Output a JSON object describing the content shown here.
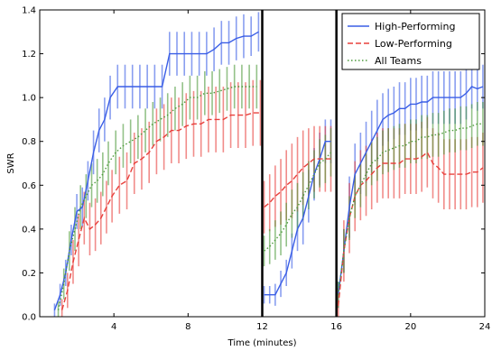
{
  "chart_data": {
    "type": "line",
    "xlabel": "Time (minutes)",
    "ylabel": "SWR",
    "xlim": [
      0,
      24
    ],
    "ylim": [
      0,
      1.4
    ],
    "x_ticks": [
      4,
      8,
      12,
      16,
      20,
      24
    ],
    "y_ticks": [
      0.0,
      0.2,
      0.4,
      0.6,
      0.8,
      1.0,
      1.2,
      1.4
    ],
    "y_tick_labels": [
      "0.0",
      "0.2",
      "0.4",
      "0.6",
      "0.8",
      "1.0",
      "1.2",
      "1.4"
    ],
    "grid": false,
    "legend_position": "top-right",
    "phase_boundaries": [
      12,
      16
    ],
    "series": [
      {
        "name": "High-Performing",
        "color": "#3a5ee6",
        "line_style": "solid",
        "segments": [
          {
            "x": [
              0.8,
              1.1,
              1.4,
              1.7,
              2.0,
              2.3,
              2.6,
              2.9,
              3.2,
              3.5,
              3.8,
              4.2,
              4.6,
              5.0,
              5.4,
              5.8,
              6.2,
              6.6,
              7.0,
              7.4,
              7.8,
              8.2,
              8.6,
              9.0,
              9.4,
              9.8,
              10.2,
              10.6,
              11.0,
              11.4,
              11.8
            ],
            "y": [
              0.03,
              0.1,
              0.2,
              0.35,
              0.48,
              0.5,
              0.62,
              0.75,
              0.85,
              0.9,
              1.0,
              1.05,
              1.05,
              1.05,
              1.05,
              1.05,
              1.05,
              1.05,
              1.2,
              1.2,
              1.2,
              1.2,
              1.2,
              1.2,
              1.22,
              1.25,
              1.25,
              1.27,
              1.28,
              1.28,
              1.3
            ],
            "err": [
              0.03,
              0.05,
              0.06,
              0.07,
              0.08,
              0.09,
              0.09,
              0.1,
              0.1,
              0.1,
              0.1,
              0.1,
              0.1,
              0.1,
              0.1,
              0.1,
              0.1,
              0.1,
              0.1,
              0.1,
              0.1,
              0.1,
              0.1,
              0.1,
              0.1,
              0.1,
              0.1,
              0.1,
              0.1,
              0.09,
              0.09
            ]
          },
          {
            "x": [
              12.1,
              12.4,
              12.7,
              13.0,
              13.3,
              13.6,
              13.9,
              14.2,
              14.5,
              14.8,
              15.1,
              15.4,
              15.7
            ],
            "y": [
              0.1,
              0.1,
              0.1,
              0.15,
              0.2,
              0.3,
              0.4,
              0.45,
              0.55,
              0.65,
              0.72,
              0.8,
              0.8
            ],
            "err": [
              0.04,
              0.04,
              0.05,
              0.06,
              0.06,
              0.08,
              0.1,
              0.12,
              0.12,
              0.12,
              0.12,
              0.1,
              0.1
            ]
          },
          {
            "x": [
              16.1,
              16.4,
              16.7,
              17.0,
              17.3,
              17.6,
              17.9,
              18.2,
              18.5,
              18.8,
              19.1,
              19.4,
              19.7,
              20.0,
              20.3,
              20.6,
              20.9,
              21.2,
              21.5,
              21.8,
              22.1,
              22.4,
              22.7,
              23.0,
              23.3,
              23.6,
              23.9
            ],
            "y": [
              0.1,
              0.3,
              0.5,
              0.65,
              0.7,
              0.75,
              0.8,
              0.85,
              0.9,
              0.92,
              0.93,
              0.95,
              0.95,
              0.97,
              0.97,
              0.98,
              0.98,
              1.0,
              1.0,
              1.0,
              1.0,
              1.0,
              1.0,
              1.02,
              1.05,
              1.04,
              1.05
            ],
            "err": [
              0.06,
              0.1,
              0.14,
              0.14,
              0.14,
              0.14,
              0.14,
              0.14,
              0.12,
              0.12,
              0.12,
              0.12,
              0.12,
              0.12,
              0.12,
              0.12,
              0.12,
              0.12,
              0.12,
              0.12,
              0.12,
              0.12,
              0.12,
              0.12,
              0.1,
              0.1,
              0.1
            ]
          }
        ]
      },
      {
        "name": "Low-Performing",
        "color": "#e8403c",
        "line_style": "dashed",
        "segments": [
          {
            "x": [
              1.2,
              1.5,
              1.8,
              2.1,
              2.4,
              2.7,
              3.0,
              3.3,
              3.6,
              3.9,
              4.3,
              4.7,
              5.1,
              5.5,
              5.9,
              6.3,
              6.7,
              7.1,
              7.5,
              7.9,
              8.3,
              8.7,
              9.1,
              9.5,
              9.9,
              10.3,
              10.7,
              11.1,
              11.5,
              11.9
            ],
            "y": [
              0.03,
              0.12,
              0.25,
              0.35,
              0.45,
              0.4,
              0.42,
              0.45,
              0.5,
              0.55,
              0.6,
              0.62,
              0.7,
              0.72,
              0.75,
              0.8,
              0.82,
              0.85,
              0.85,
              0.87,
              0.88,
              0.88,
              0.9,
              0.9,
              0.9,
              0.92,
              0.92,
              0.92,
              0.93,
              0.93
            ],
            "err": [
              0.05,
              0.08,
              0.1,
              0.12,
              0.12,
              0.12,
              0.12,
              0.12,
              0.12,
              0.12,
              0.13,
              0.13,
              0.14,
              0.14,
              0.14,
              0.15,
              0.15,
              0.15,
              0.15,
              0.15,
              0.15,
              0.15,
              0.15,
              0.15,
              0.15,
              0.15,
              0.15,
              0.15,
              0.15,
              0.15
            ]
          },
          {
            "x": [
              12.1,
              12.4,
              12.7,
              13.0,
              13.3,
              13.6,
              13.9,
              14.2,
              14.5,
              14.8,
              15.1,
              15.4,
              15.7
            ],
            "y": [
              0.5,
              0.52,
              0.55,
              0.57,
              0.6,
              0.62,
              0.65,
              0.68,
              0.7,
              0.72,
              0.72,
              0.72,
              0.72
            ],
            "err": [
              0.12,
              0.13,
              0.14,
              0.15,
              0.16,
              0.17,
              0.17,
              0.17,
              0.16,
              0.15,
              0.15,
              0.15,
              0.15
            ]
          },
          {
            "x": [
              16.1,
              16.4,
              16.7,
              17.0,
              17.3,
              17.6,
              17.9,
              18.2,
              18.5,
              18.8,
              19.1,
              19.4,
              19.7,
              20.0,
              20.3,
              20.6,
              20.9,
              21.2,
              21.5,
              21.8,
              22.1,
              22.4,
              22.7,
              23.0,
              23.3,
              23.6,
              23.9
            ],
            "y": [
              0.05,
              0.3,
              0.45,
              0.55,
              0.6,
              0.62,
              0.65,
              0.68,
              0.7,
              0.7,
              0.7,
              0.7,
              0.72,
              0.72,
              0.72,
              0.73,
              0.75,
              0.7,
              0.68,
              0.65,
              0.65,
              0.65,
              0.65,
              0.65,
              0.66,
              0.66,
              0.68
            ],
            "err": [
              0.08,
              0.14,
              0.16,
              0.16,
              0.16,
              0.16,
              0.16,
              0.16,
              0.16,
              0.16,
              0.16,
              0.16,
              0.16,
              0.16,
              0.16,
              0.16,
              0.16,
              0.16,
              0.16,
              0.16,
              0.16,
              0.16,
              0.16,
              0.16,
              0.16,
              0.16,
              0.16
            ]
          }
        ]
      },
      {
        "name": "All Teams",
        "color": "#4c9a3b",
        "line_style": "dotted",
        "segments": [
          {
            "x": [
              1.0,
              1.3,
              1.6,
              1.9,
              2.2,
              2.5,
              2.8,
              3.1,
              3.4,
              3.7,
              4.1,
              4.5,
              4.9,
              5.3,
              5.7,
              6.1,
              6.5,
              6.9,
              7.3,
              7.7,
              8.1,
              8.5,
              8.9,
              9.3,
              9.7,
              10.1,
              10.5,
              10.9,
              11.3,
              11.7
            ],
            "y": [
              0.03,
              0.15,
              0.3,
              0.4,
              0.5,
              0.55,
              0.6,
              0.62,
              0.65,
              0.7,
              0.75,
              0.78,
              0.8,
              0.82,
              0.85,
              0.88,
              0.9,
              0.92,
              0.95,
              0.97,
              1.0,
              1.0,
              1.02,
              1.02,
              1.03,
              1.04,
              1.05,
              1.05,
              1.05,
              1.05
            ],
            "err": [
              0.04,
              0.07,
              0.09,
              0.1,
              0.1,
              0.1,
              0.1,
              0.1,
              0.1,
              0.1,
              0.1,
              0.1,
              0.1,
              0.1,
              0.1,
              0.1,
              0.1,
              0.1,
              0.1,
              0.1,
              0.1,
              0.1,
              0.1,
              0.1,
              0.1,
              0.1,
              0.1,
              0.1,
              0.1,
              0.1
            ]
          },
          {
            "x": [
              12.1,
              12.4,
              12.7,
              13.0,
              13.3,
              13.6,
              13.9,
              14.2,
              14.5,
              14.8,
              15.1,
              15.4,
              15.7
            ],
            "y": [
              0.3,
              0.32,
              0.35,
              0.38,
              0.42,
              0.47,
              0.5,
              0.55,
              0.6,
              0.65,
              0.7,
              0.72,
              0.75
            ],
            "err": [
              0.07,
              0.08,
              0.09,
              0.1,
              0.1,
              0.11,
              0.11,
              0.11,
              0.11,
              0.11,
              0.11,
              0.11,
              0.11
            ]
          },
          {
            "x": [
              16.1,
              16.4,
              16.7,
              17.0,
              17.3,
              17.6,
              17.9,
              18.2,
              18.5,
              18.8,
              19.1,
              19.4,
              19.7,
              20.0,
              20.3,
              20.6,
              20.9,
              21.2,
              21.5,
              21.8,
              22.1,
              22.4,
              22.7,
              23.0,
              23.3,
              23.6,
              23.9
            ],
            "y": [
              0.1,
              0.3,
              0.45,
              0.55,
              0.6,
              0.65,
              0.7,
              0.72,
              0.75,
              0.76,
              0.77,
              0.78,
              0.78,
              0.8,
              0.8,
              0.82,
              0.82,
              0.83,
              0.83,
              0.84,
              0.85,
              0.85,
              0.86,
              0.86,
              0.87,
              0.88,
              0.88
            ],
            "err": [
              0.06,
              0.1,
              0.1,
              0.1,
              0.1,
              0.1,
              0.1,
              0.1,
              0.1,
              0.1,
              0.1,
              0.1,
              0.1,
              0.1,
              0.1,
              0.1,
              0.1,
              0.1,
              0.1,
              0.1,
              0.1,
              0.1,
              0.1,
              0.1,
              0.1,
              0.1,
              0.1
            ]
          }
        ]
      }
    ]
  }
}
